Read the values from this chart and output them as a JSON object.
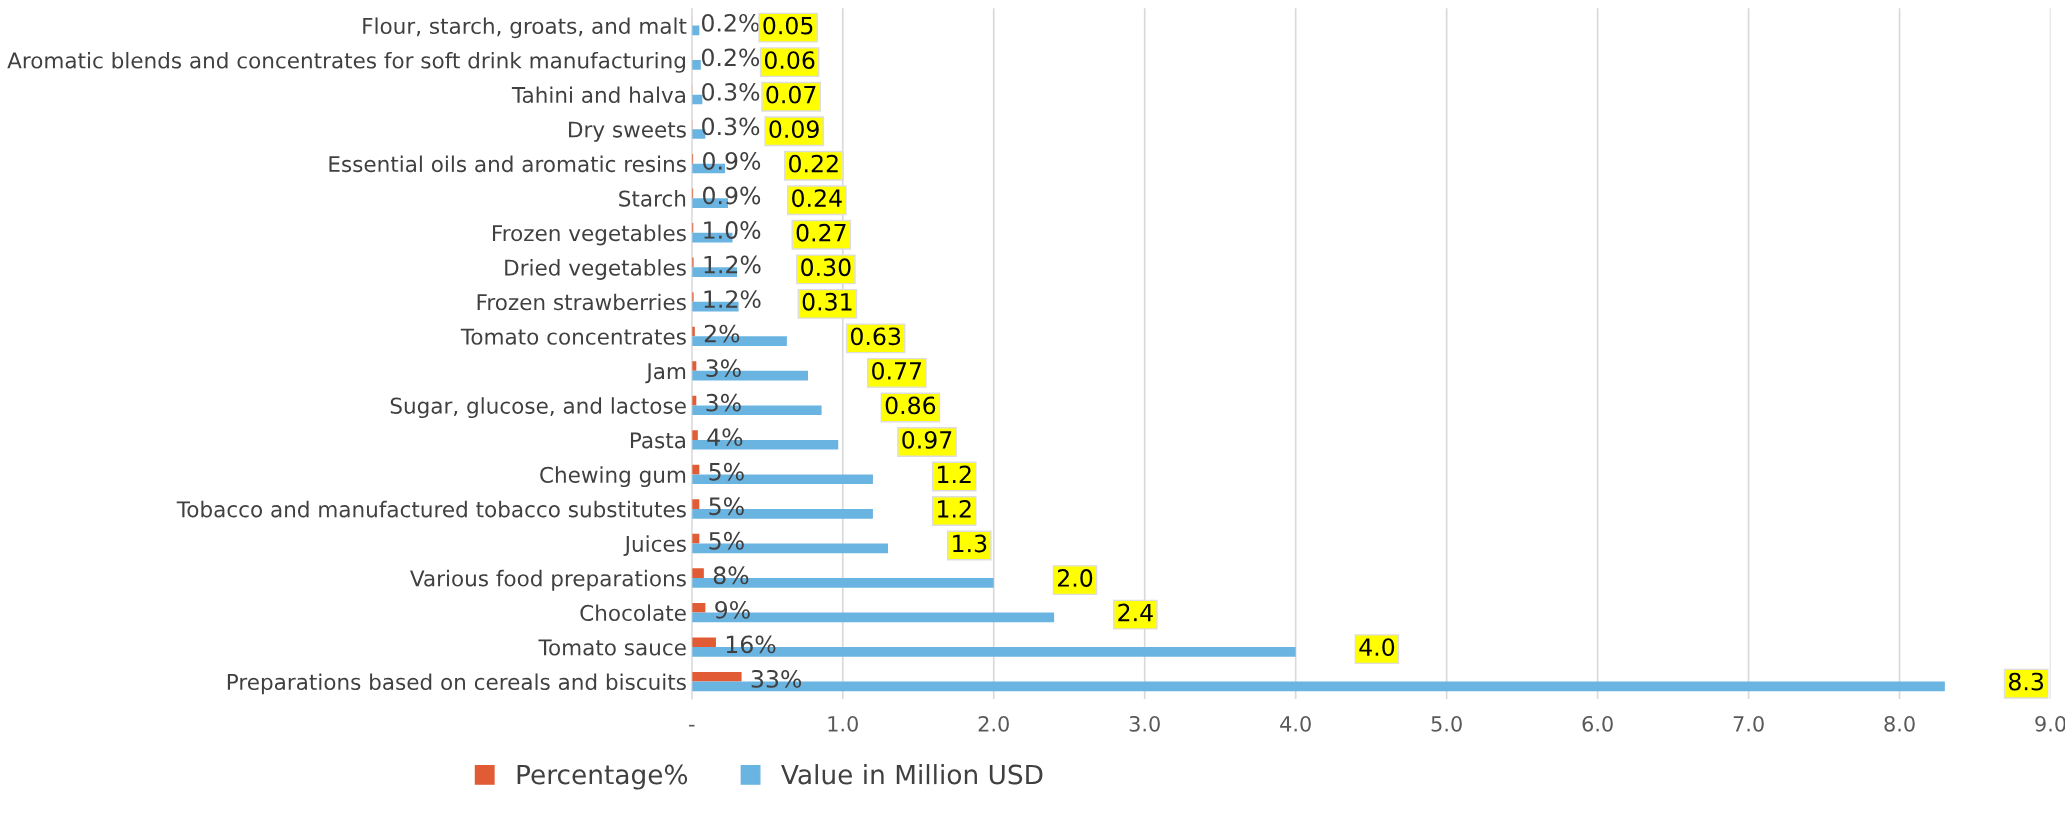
{
  "chart_data": {
    "type": "bar",
    "orientation": "horizontal",
    "categories": [
      "Flour, starch, groats, and malt",
      "Aromatic blends and concentrates for soft drink manufacturing",
      "Tahini and halva",
      "Dry sweets",
      "Essential oils and aromatic resins",
      "Starch",
      "Frozen vegetables",
      "Dried vegetables",
      "Frozen strawberries",
      "Tomato concentrates",
      "Jam",
      "Sugar, glucose, and lactose",
      "Pasta",
      "Chewing gum",
      "Tobacco and manufactured tobacco substitutes",
      "Juices",
      "Various food preparations",
      "Chocolate",
      "Tomato sauce",
      "Preparations based on cereals and biscuits"
    ],
    "series": [
      {
        "name": "Percentage%",
        "color": "#e15b35",
        "values": [
          0.002,
          0.002,
          0.003,
          0.003,
          0.009,
          0.009,
          0.01,
          0.012,
          0.012,
          0.02,
          0.03,
          0.03,
          0.04,
          0.05,
          0.05,
          0.05,
          0.08,
          0.09,
          0.16,
          0.33
        ],
        "value_labels": [
          "0.2%",
          "0.2%",
          "0.3%",
          "0.3%",
          "0.9%",
          "0.9%",
          "1.0%",
          "1.2%",
          "1.2%",
          "2%",
          "3%",
          "3%",
          "4%",
          "5%",
          "5%",
          "5%",
          "8%",
          "9%",
          "16%",
          "33%"
        ]
      },
      {
        "name": "Value in Million USD",
        "color": "#6ab4e2",
        "values": [
          0.05,
          0.06,
          0.07,
          0.09,
          0.22,
          0.24,
          0.27,
          0.3,
          0.31,
          0.63,
          0.77,
          0.86,
          0.97,
          1.2,
          1.2,
          1.3,
          2.0,
          2.4,
          4.0,
          8.3
        ],
        "value_labels": [
          "0.05",
          "0.06",
          "0.07",
          "0.09",
          "0.22",
          "0.24",
          "0.27",
          "0.30",
          "0.31",
          "0.63",
          "0.77",
          "0.86",
          "0.97",
          "1.2",
          "1.2",
          "1.3",
          "2.0",
          "2.4",
          "4.0",
          "8.3"
        ]
      }
    ],
    "xlim": [
      0,
      9
    ],
    "xticks": [
      {
        "value": 0,
        "label": "-"
      },
      {
        "value": 1,
        "label": "1.0"
      },
      {
        "value": 2,
        "label": "2.0"
      },
      {
        "value": 3,
        "label": "3.0"
      },
      {
        "value": 4,
        "label": "4.0"
      },
      {
        "value": 5,
        "label": "5.0"
      },
      {
        "value": 6,
        "label": "6.0"
      },
      {
        "value": 7,
        "label": "7.0"
      },
      {
        "value": 8,
        "label": "8.0"
      },
      {
        "value": 9,
        "label": "9.0"
      }
    ],
    "grid": "x",
    "legend": "bottom"
  }
}
